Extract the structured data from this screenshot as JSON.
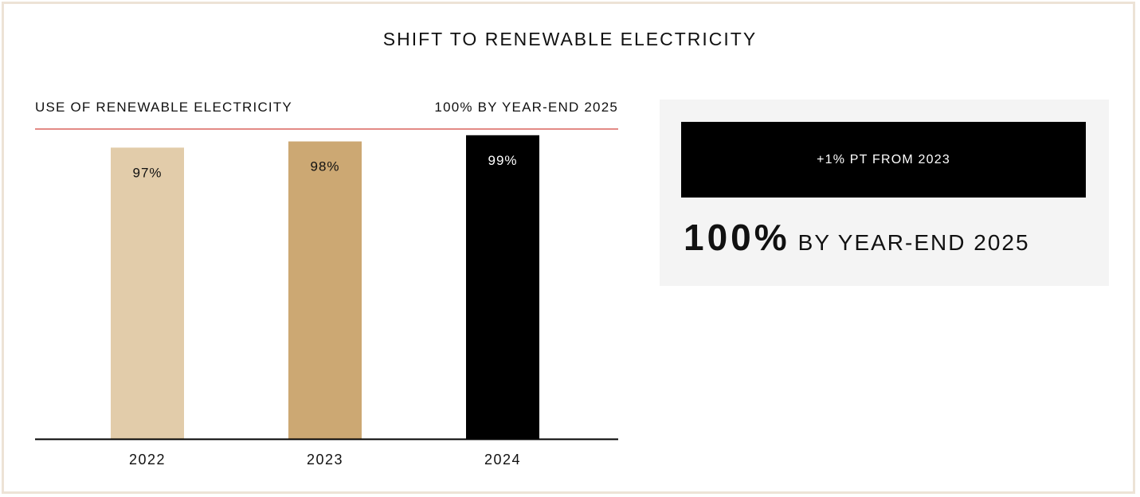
{
  "title": "SHIFT TO RENEWABLE ELECTRICITY",
  "chart_header": {
    "left_label": "USE OF RENEWABLE ELECTRICITY",
    "target_label": "100% BY YEAR-END 2025"
  },
  "chart_data": {
    "type": "bar",
    "title": "USE OF RENEWABLE ELECTRICITY",
    "categories": [
      "2022",
      "2023",
      "2024"
    ],
    "values": [
      97,
      98,
      99
    ],
    "value_labels": [
      "97%",
      "98%",
      "99%"
    ],
    "bar_colors": [
      "#e2ccaa",
      "#cca873",
      "#000000"
    ],
    "label_colors": [
      "#111111",
      "#111111",
      "#ffffff"
    ],
    "target": {
      "value": 100,
      "label": "100% BY YEAR-END 2025",
      "color": "#e38a86"
    },
    "ylim": [
      0,
      100
    ],
    "grid": false,
    "xlabel": "",
    "ylabel": ""
  },
  "panel": {
    "badge": "+1% PT FROM 2023",
    "big_value": "100%",
    "big_suffix": "BY YEAR-END 2025"
  },
  "colors": {
    "frame_border": "#ede3d6",
    "panel_background": "#f4f4f4",
    "target_line": "#e38a86"
  }
}
